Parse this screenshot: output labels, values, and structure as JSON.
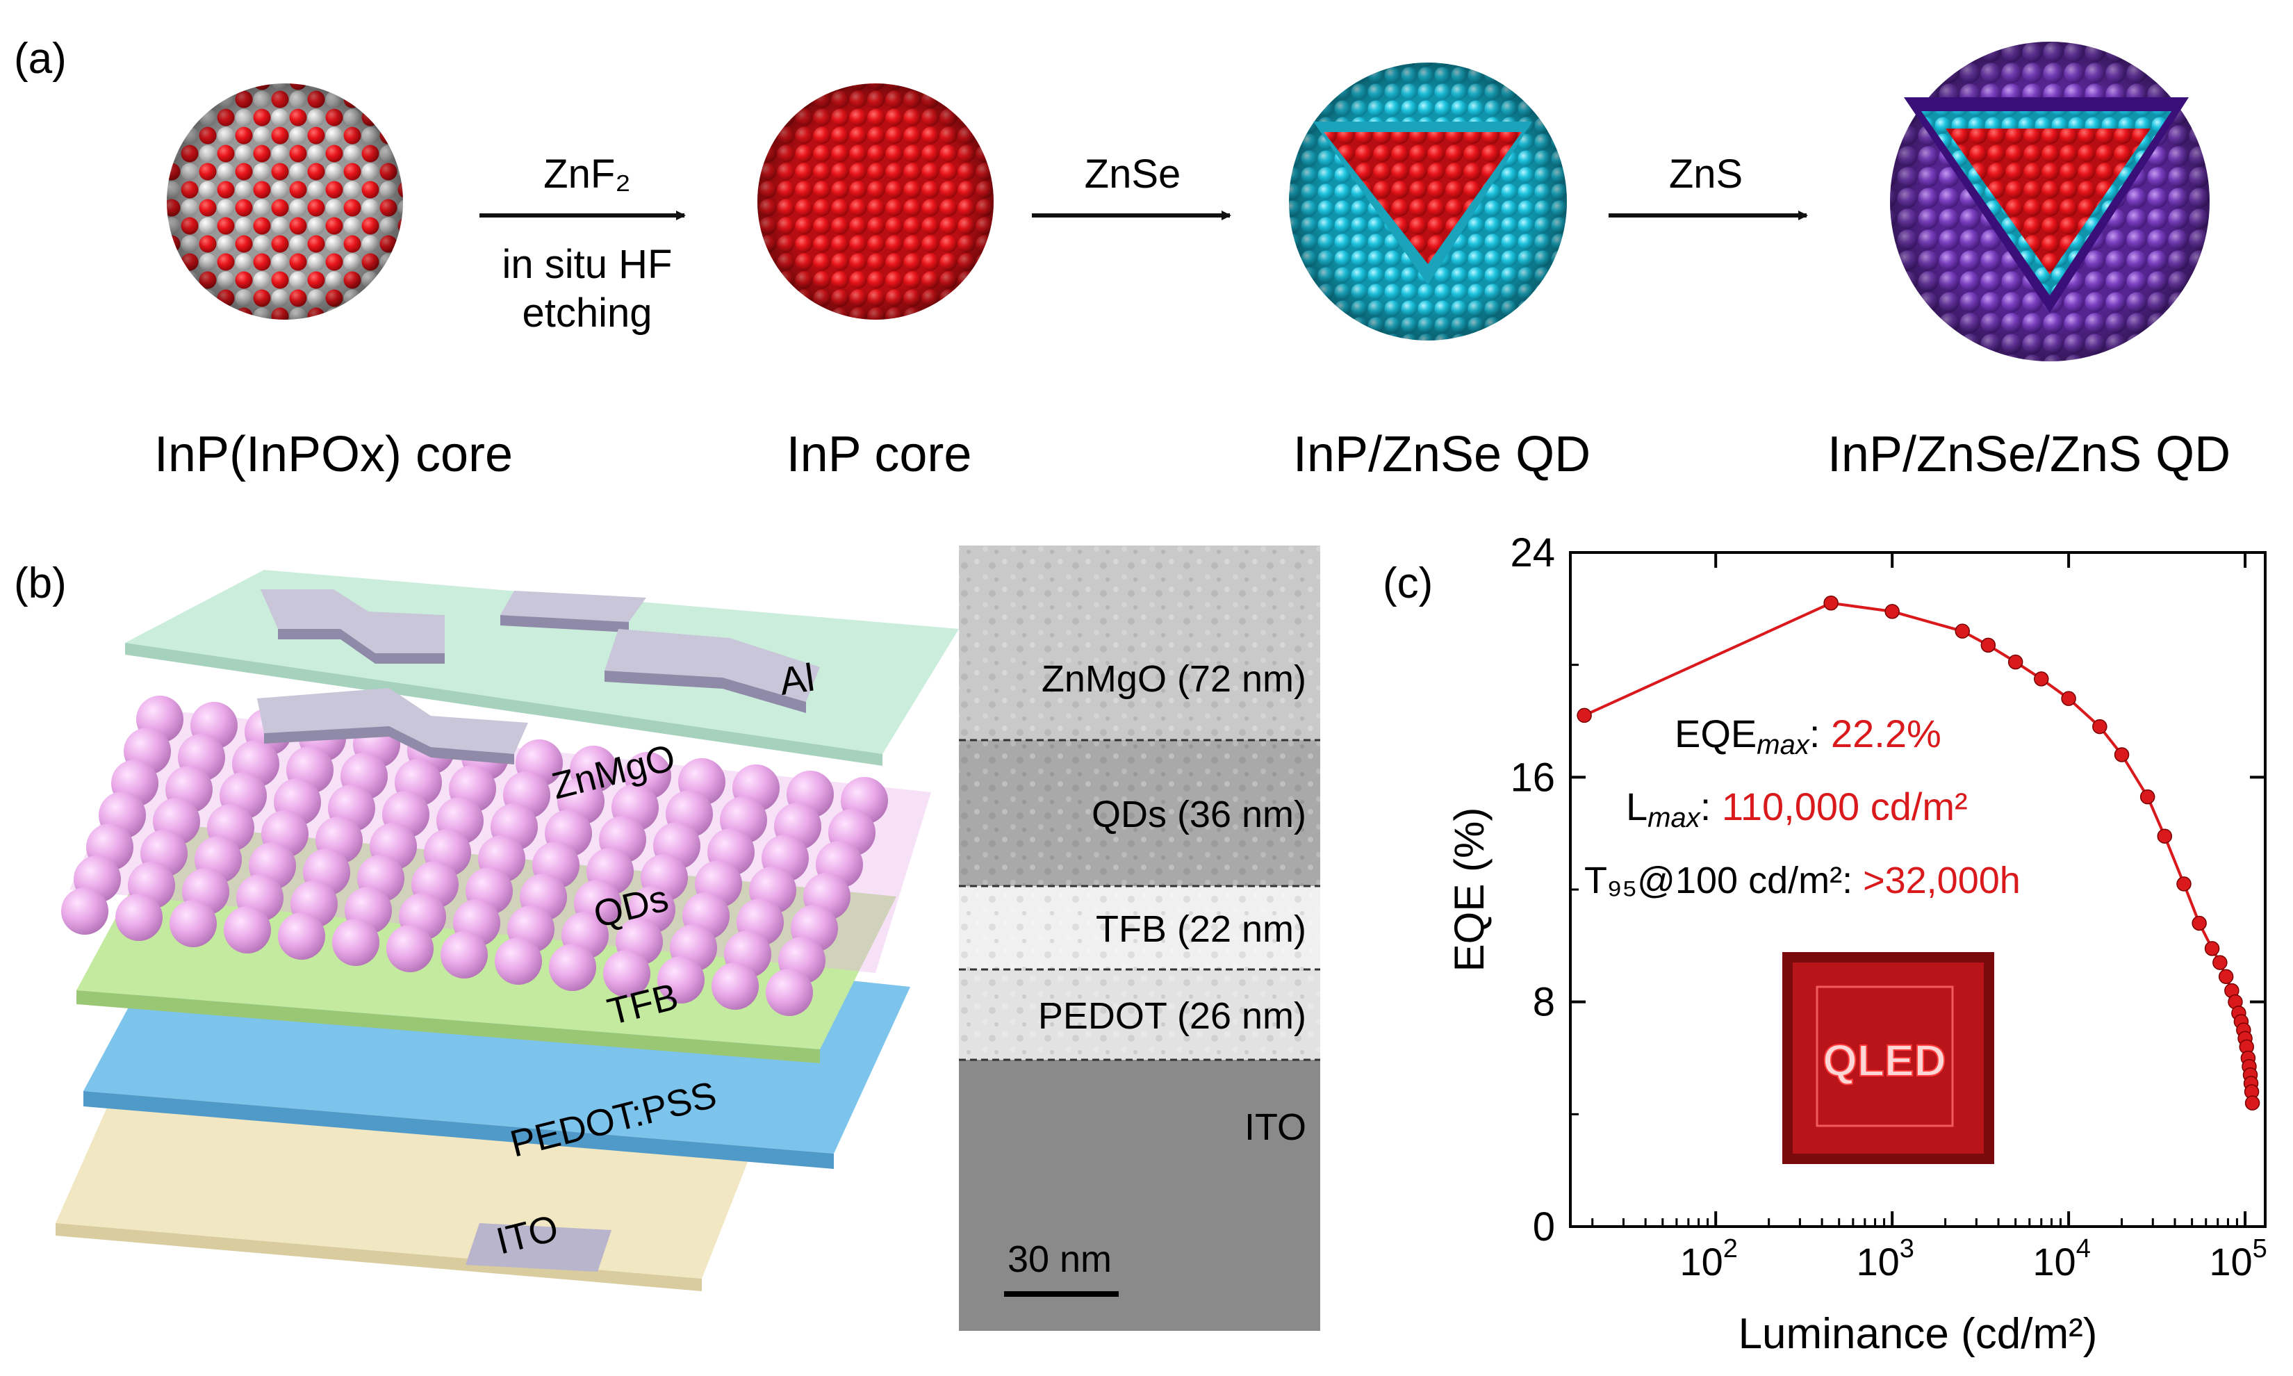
{
  "panel_a": {
    "label": "(a)",
    "stages": [
      {
        "name": "InP(InPOx) core"
      },
      {
        "name": "InP core"
      },
      {
        "name": "InP/ZnSe QD"
      },
      {
        "name": "InP/ZnSe/ZnS QD"
      }
    ],
    "arrows": [
      {
        "line1": "ZnF₂",
        "line2": "in situ HF",
        "line3": "etching"
      },
      {
        "line1": "ZnSe"
      },
      {
        "line1": "ZnS"
      }
    ],
    "colors": {
      "inp": "#e8151b",
      "inpox": "#c8c8c8",
      "znse": "#1cc3df",
      "zns": "#7a3fbf"
    }
  },
  "panel_b": {
    "label": "(b)",
    "device_layers": [
      "Al",
      "ZnMgO",
      "QDs",
      "TFB",
      "PEDOT:PSS",
      "ITO"
    ],
    "tem_layers": [
      {
        "name": "ZnMgO (72 nm)"
      },
      {
        "name": "QDs (36 nm)"
      },
      {
        "name": "TFB (22 nm)"
      },
      {
        "name": "PEDOT (26 nm)"
      },
      {
        "name": "ITO"
      }
    ],
    "scale_bar": "30 nm",
    "colors": {
      "znmgo": "#c6ecd9",
      "qd": "#e9a8e8",
      "tfb": "#c4eaa0",
      "pedot": "#7cc4ec",
      "ito": "#f1e7c2",
      "metal": "#b9b5cc"
    }
  },
  "panel_c": {
    "label": "(c)",
    "annotations": {
      "eqe_prefix": "EQE",
      "eqe_sub": "max",
      "eqe_colon": ": ",
      "eqe_value": "22.2%",
      "l_prefix": "L",
      "l_sub": "max",
      "l_colon": ": ",
      "l_value": "110,000 cd/m²",
      "t_prefix": "T₉₅@100 cd/m²: ",
      "t_value": ">32,000h",
      "inset_text": "QLED"
    },
    "accent_color": "#d9191c"
  },
  "chart_data": {
    "type": "line",
    "title": "",
    "xlabel": "Luminance (cd/m²)",
    "ylabel": "EQE (%)",
    "xscale": "log",
    "xlim": [
      15,
      130000
    ],
    "ylim": [
      0,
      24
    ],
    "xticks": [
      100,
      1000,
      10000,
      100000
    ],
    "xtick_labels": [
      {
        "base": "10",
        "exp": "2"
      },
      {
        "base": "10",
        "exp": "3"
      },
      {
        "base": "10",
        "exp": "4"
      },
      {
        "base": "10",
        "exp": "5"
      }
    ],
    "yticks": [
      0,
      8,
      16,
      24
    ],
    "ytick_labels": [
      "0",
      "8",
      "16",
      "24"
    ],
    "series": [
      {
        "name": "EQE",
        "color": "#d9191c",
        "x": [
          18,
          450,
          1000,
          2500,
          3500,
          5000,
          7000,
          10000,
          15000,
          20000,
          28000,
          35000,
          45000,
          55000,
          65000,
          72000,
          78000,
          84000,
          88000,
          92000,
          95000,
          98000,
          100000,
          102000,
          104000,
          105500,
          107000,
          108000,
          109000,
          110000
        ],
        "y": [
          18.2,
          22.2,
          21.9,
          21.2,
          20.7,
          20.1,
          19.5,
          18.8,
          17.8,
          16.8,
          15.3,
          13.9,
          12.2,
          10.8,
          9.9,
          9.4,
          8.9,
          8.4,
          8.0,
          7.6,
          7.3,
          7.0,
          6.7,
          6.4,
          6.0,
          5.7,
          5.4,
          5.1,
          4.8,
          4.4
        ]
      }
    ]
  }
}
